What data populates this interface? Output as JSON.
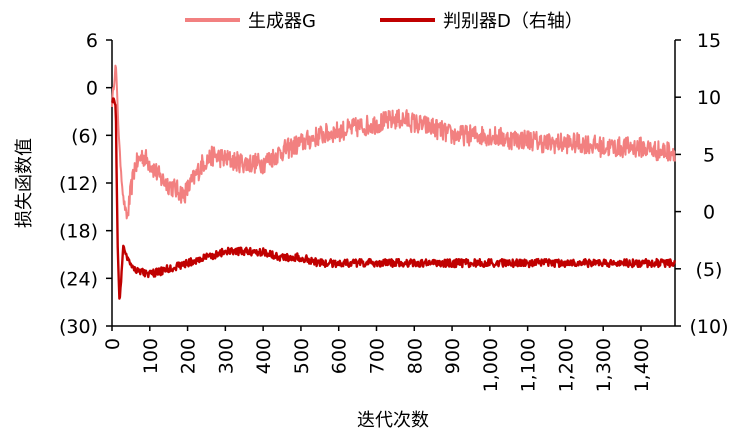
{
  "chart_data": {
    "type": "line",
    "title": "",
    "xlabel": "迭代次数",
    "ylabel_left": "损失函数值",
    "ylabel_right": "",
    "xlim": [
      0,
      1490
    ],
    "xticks": [
      0,
      100,
      200,
      300,
      400,
      500,
      600,
      700,
      800,
      900,
      1000,
      1100,
      1200,
      1300,
      1400
    ],
    "xtick_labels": [
      "0",
      "100",
      "200",
      "300",
      "400",
      "500",
      "600",
      "700",
      "800",
      "900",
      "1,000",
      "1,100",
      "1,200",
      "1,300",
      "1,400"
    ],
    "ylim_left": [
      -30,
      6
    ],
    "yticks_left": [
      6,
      0,
      -6,
      -12,
      -18,
      -24,
      -30
    ],
    "ytick_labels_left": [
      "6",
      "0",
      "(6)",
      "(12)",
      "(18)",
      "(24)",
      "(30)"
    ],
    "ylim_right": [
      -10,
      15
    ],
    "yticks_right": [
      15,
      10,
      5,
      0,
      -5,
      -10
    ],
    "ytick_labels_right": [
      "15",
      "10",
      "5",
      "0",
      "(5)",
      "(10)"
    ],
    "grid": false,
    "legend_position": "top",
    "series": [
      {
        "name": "生成器G",
        "axis": "left",
        "color": "#f28080",
        "x": [
          0,
          10,
          20,
          30,
          40,
          50,
          60,
          80,
          100,
          130,
          160,
          190,
          210,
          240,
          270,
          300,
          350,
          400,
          450,
          500,
          550,
          600,
          650,
          700,
          750,
          780,
          800,
          850,
          900,
          950,
          1000,
          1050,
          1100,
          1150,
          1200,
          1250,
          1300,
          1350,
          1400,
          1450,
          1490
        ],
        "values": [
          -2,
          3,
          -8,
          -14,
          -16.5,
          -13,
          -10,
          -8.5,
          -9.5,
          -11.5,
          -12.5,
          -13.5,
          -12,
          -9.5,
          -8.5,
          -9,
          -9.5,
          -9.5,
          -8,
          -7,
          -6,
          -5.5,
          -5,
          -4.5,
          -4,
          -4,
          -4.5,
          -5,
          -6,
          -6,
          -6,
          -6.5,
          -6.5,
          -7,
          -7,
          -7,
          -7.5,
          -7.5,
          -7.5,
          -8,
          -8
        ]
      },
      {
        "name": "判别器D（右轴）",
        "axis": "right",
        "color": "#c00000",
        "x": [
          0,
          5,
          10,
          15,
          20,
          25,
          30,
          40,
          60,
          100,
          150,
          200,
          250,
          300,
          350,
          400,
          450,
          500,
          550,
          600,
          650,
          700,
          800,
          900,
          1000,
          1100,
          1200,
          1300,
          1400,
          1490
        ],
        "values": [
          9.5,
          10,
          9,
          -3,
          -8,
          -5.5,
          -3,
          -4,
          -5,
          -5.5,
          -5,
          -4.5,
          -4,
          -3.5,
          -3.5,
          -3.5,
          -4,
          -4,
          -4.5,
          -4.5,
          -4.5,
          -4.5,
          -4.5,
          -4.5,
          -4.5,
          -4.5,
          -4.5,
          -4.5,
          -4.5,
          -4.5
        ]
      }
    ]
  }
}
